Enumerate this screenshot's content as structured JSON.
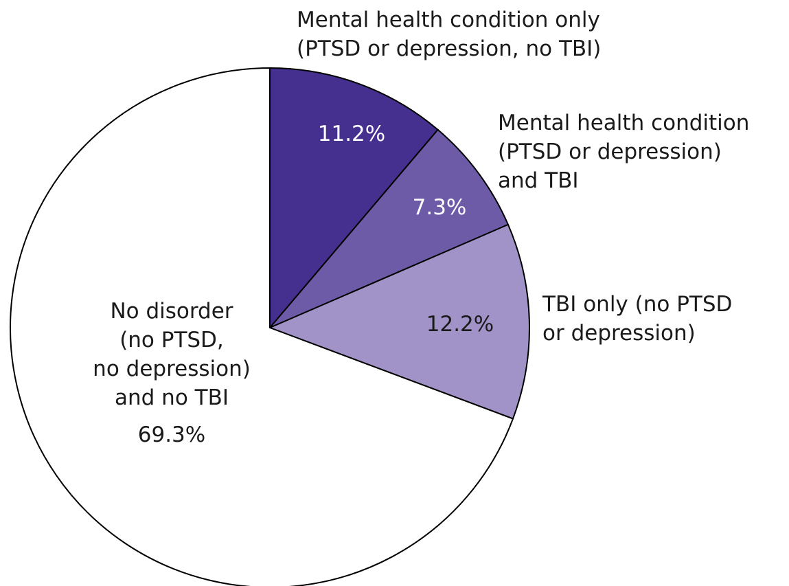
{
  "chart_data": {
    "type": "pie",
    "categories": [
      "Mental health condition only\n(PTSD or depression, no TBI)",
      "Mental health condition\n(PTSD or depression)\nand TBI",
      "TBI only (no PTSD\nor depression)",
      "No disorder\n(no PTSD,\nno depression)\nand no TBI"
    ],
    "values": [
      11.2,
      7.3,
      12.2,
      69.3
    ],
    "value_labels": [
      "11.2%",
      "7.3%",
      "12.2%",
      "69.3%"
    ],
    "colors": [
      "#452f8f",
      "#6e5ba8",
      "#a193c7",
      "#ffffff"
    ]
  }
}
